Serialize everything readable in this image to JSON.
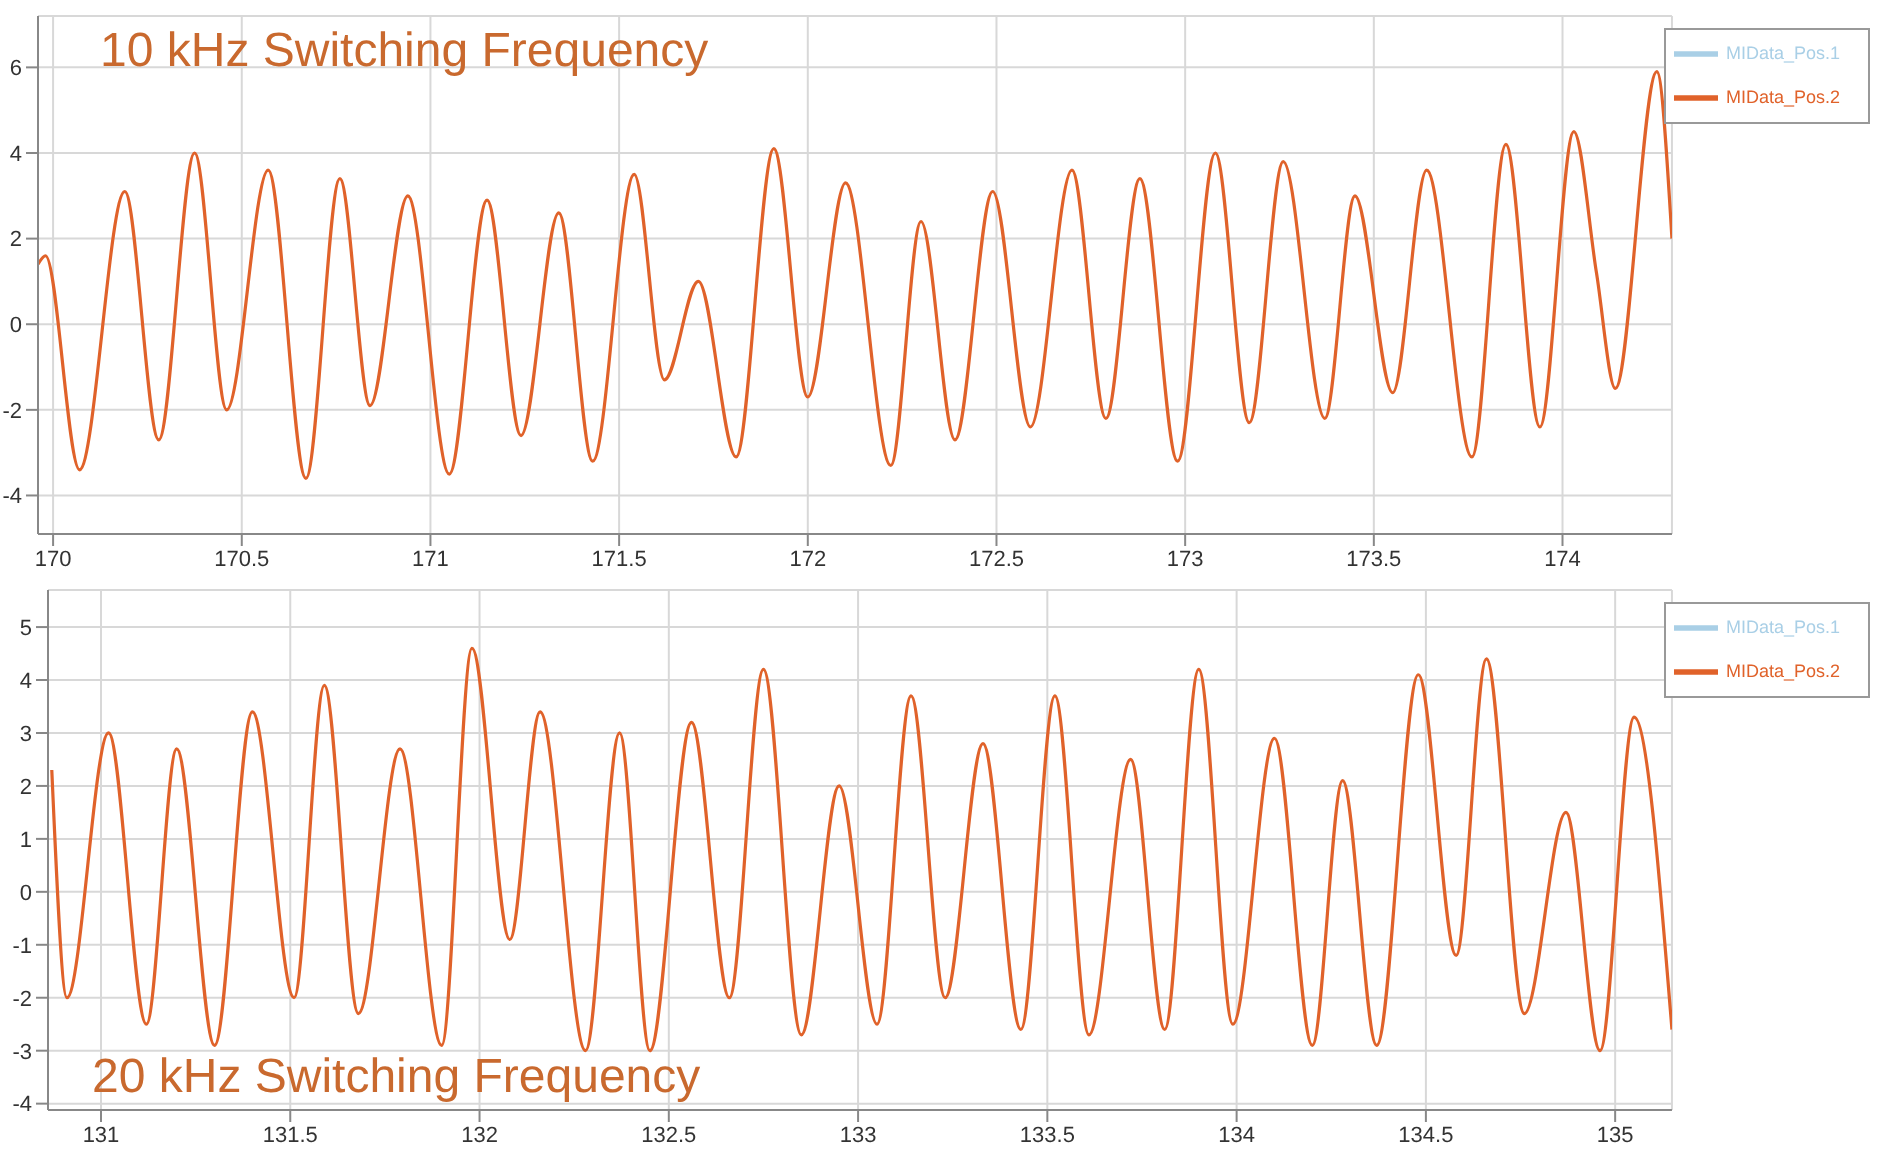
{
  "chart_data": [
    {
      "type": "line",
      "title": "10 kHz Switching Frequency",
      "x": [
        169.96,
        169.98,
        170.07,
        170.19,
        170.28,
        170.375,
        170.46,
        170.57,
        170.67,
        170.76,
        170.84,
        170.94,
        171.05,
        171.15,
        171.24,
        171.34,
        171.43,
        171.54,
        171.62,
        171.71,
        171.81,
        171.91,
        172.0,
        172.1,
        172.22,
        172.3,
        172.39,
        172.49,
        172.59,
        172.7,
        172.79,
        172.88,
        172.98,
        173.08,
        173.17,
        173.26,
        173.37,
        173.45,
        173.55,
        173.64,
        173.76,
        173.85,
        173.94,
        174.03,
        174.09,
        174.14,
        174.25,
        174.29
      ],
      "series": [
        {
          "name": "MIData_Pos.1",
          "color": "#a9cfe6",
          "values": [
            null,
            null,
            null,
            null,
            null,
            null,
            null,
            null,
            null,
            null,
            null,
            null,
            null,
            null,
            null,
            null,
            null,
            null,
            null,
            null,
            null,
            null,
            null,
            null,
            null,
            null,
            null,
            null,
            null,
            null,
            null,
            null,
            null,
            null,
            null,
            null,
            null,
            null,
            null,
            null,
            null,
            null,
            null,
            null,
            null,
            null,
            null,
            null
          ]
        },
        {
          "name": "MIData_Pos.2",
          "color": "#e0622a",
          "values": [
            1.4,
            1.6,
            -3.4,
            3.1,
            -2.7,
            4.0,
            -2.0,
            3.6,
            -3.6,
            3.4,
            -1.9,
            3.0,
            -3.5,
            2.9,
            -2.6,
            2.6,
            -3.2,
            3.5,
            -1.3,
            1.0,
            -3.1,
            4.1,
            -1.7,
            3.3,
            -3.3,
            2.4,
            -2.7,
            3.1,
            -2.4,
            3.6,
            -2.2,
            3.4,
            -3.2,
            4.0,
            -2.3,
            3.8,
            -2.2,
            3.0,
            -1.6,
            3.6,
            -3.1,
            4.2,
            -2.4,
            4.5,
            1.2,
            -1.5,
            5.9,
            2.0
          ]
        }
      ],
      "xlim": [
        169.96,
        174.29
      ],
      "xticks": [
        170,
        170.5,
        171,
        171.5,
        172,
        172.5,
        173,
        173.5,
        174
      ],
      "ylim": [
        -4.9,
        7.2
      ],
      "yticks": [
        -4,
        -2,
        0,
        2,
        4,
        6
      ],
      "grid": true,
      "legend": "top right",
      "marker": "none",
      "line_style": "solid"
    },
    {
      "type": "line",
      "title": "20 kHz Switching Frequency",
      "x": [
        130.87,
        130.91,
        131.02,
        131.12,
        131.2,
        131.3,
        131.4,
        131.51,
        131.59,
        131.68,
        131.79,
        131.9,
        131.98,
        132.08,
        132.16,
        132.28,
        132.37,
        132.45,
        132.56,
        132.66,
        132.75,
        132.85,
        132.95,
        133.05,
        133.14,
        133.23,
        133.33,
        133.43,
        133.52,
        133.61,
        133.72,
        133.81,
        133.9,
        133.99,
        134.1,
        134.2,
        134.28,
        134.37,
        134.48,
        134.58,
        134.66,
        134.76,
        134.87,
        134.96,
        135.05,
        135.15
      ],
      "series": [
        {
          "name": "MIData_Pos.1",
          "color": "#a9cfe6",
          "values": [
            null,
            null,
            null,
            null,
            null,
            null,
            null,
            null,
            null,
            null,
            null,
            null,
            null,
            null,
            null,
            null,
            null,
            null,
            null,
            null,
            null,
            null,
            null,
            null,
            null,
            null,
            null,
            null,
            null,
            null,
            null,
            null,
            null,
            null,
            null,
            null,
            null,
            null,
            null,
            null,
            null,
            null,
            null,
            null,
            null,
            null
          ]
        },
        {
          "name": "MIData_Pos.2",
          "color": "#e0622a",
          "values": [
            2.3,
            -2.0,
            3.0,
            -2.5,
            2.7,
            -2.9,
            3.4,
            -2.0,
            3.9,
            -2.3,
            2.7,
            -2.9,
            4.6,
            -0.9,
            3.4,
            -3.0,
            3.0,
            -3.0,
            3.2,
            -2.0,
            4.2,
            -2.7,
            2.0,
            -2.5,
            3.7,
            -2.0,
            2.8,
            -2.6,
            3.7,
            -2.7,
            2.5,
            -2.6,
            4.2,
            -2.5,
            2.9,
            -2.9,
            2.1,
            -2.9,
            4.1,
            -1.2,
            4.4,
            -2.3,
            1.5,
            -3.0,
            3.3,
            -2.6
          ]
        }
      ],
      "xlim": [
        130.86,
        135.15
      ],
      "xticks": [
        131,
        131.5,
        132,
        132.5,
        133,
        133.5,
        134,
        134.5,
        135
      ],
      "ylim": [
        -4.12,
        5.7
      ],
      "yticks": [
        -4,
        -3,
        -2,
        -1,
        0,
        1,
        2,
        3,
        4,
        5
      ],
      "grid": true,
      "legend": "top right",
      "marker": "none",
      "line_style": "solid"
    }
  ]
}
